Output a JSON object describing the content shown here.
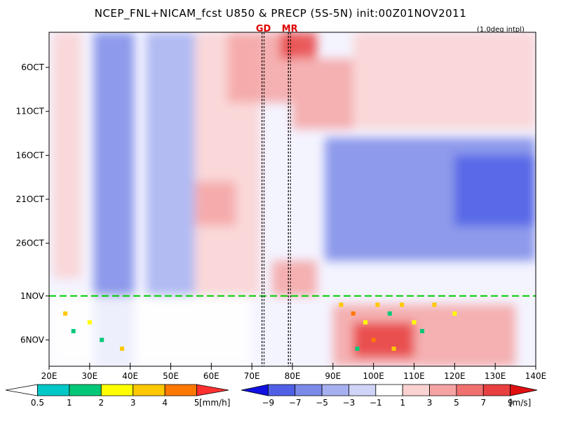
{
  "chart_data": {
    "type": "heatmap",
    "title": "NCEP_FNL+NICAM_fcst U850 & PRECP (5S-5N) init:00Z01NOV2011",
    "subtitle": "(1.0deg intpl)",
    "x_range": [
      20,
      140
    ],
    "x_ticks": [
      "20E",
      "30E",
      "40E",
      "50E",
      "60E",
      "70E",
      "80E",
      "90E",
      "100E",
      "110E",
      "120E",
      "130E",
      "140E"
    ],
    "y_range": [
      "2OCT",
      "9NOV"
    ],
    "y_ticks": [
      "6OCT",
      "11OCT",
      "16OCT",
      "21OCT",
      "26OCT",
      "1NOV",
      "6NOV"
    ],
    "y_tick_days": [
      6,
      11,
      16,
      21,
      26,
      32,
      37
    ],
    "y_first_day": 2,
    "y_last_day": 40,
    "analysis_forecast_boundary": "1NOV",
    "boundary_color": "#00cc00",
    "markers": [
      {
        "label": "GD",
        "lon": 72.5
      },
      {
        "label": "MR",
        "lon": 79
      }
    ],
    "marker_color": "#dd0000",
    "u850_bands": [
      {
        "lon": [
          31,
          41
        ],
        "day": [
          2,
          40
        ],
        "value": -5
      },
      {
        "lon": [
          21,
          28
        ],
        "day": [
          2,
          30
        ],
        "value": 3
      },
      {
        "lon": [
          44,
          56
        ],
        "day": [
          2,
          32
        ],
        "value": -3
      },
      {
        "lon": [
          56,
          72
        ],
        "day": [
          2,
          32
        ],
        "value": 3
      },
      {
        "lon": [
          64,
          80
        ],
        "day": [
          2,
          10
        ],
        "value": 5
      },
      {
        "lon": [
          77,
          86
        ],
        "day": [
          2,
          5
        ],
        "value": 9
      },
      {
        "lon": [
          80,
          95
        ],
        "day": [
          5,
          13
        ],
        "value": 5
      },
      {
        "lon": [
          56,
          66
        ],
        "day": [
          19,
          24
        ],
        "value": 5
      },
      {
        "lon": [
          75,
          86
        ],
        "day": [
          28,
          32
        ],
        "value": 5
      },
      {
        "lon": [
          88,
          140
        ],
        "day": [
          14,
          28
        ],
        "value": -5
      },
      {
        "lon": [
          120,
          140
        ],
        "day": [
          16,
          24
        ],
        "value": -7
      },
      {
        "lon": [
          95,
          140
        ],
        "day": [
          2,
          13
        ],
        "value": 3
      },
      {
        "lon": [
          90,
          135
        ],
        "day": [
          33,
          40
        ],
        "value": 5
      },
      {
        "lon": [
          95,
          110
        ],
        "day": [
          35,
          39
        ],
        "value": 9
      },
      {
        "lon": [
          20,
          70
        ],
        "day": [
          32,
          40
        ],
        "value": 1
      }
    ],
    "precip_points": [
      {
        "lon": 24,
        "day": 34,
        "value": 3
      },
      {
        "lon": 26,
        "day": 36,
        "value": 1
      },
      {
        "lon": 30,
        "day": 35,
        "value": 2
      },
      {
        "lon": 33,
        "day": 37,
        "value": 1
      },
      {
        "lon": 38,
        "day": 38,
        "value": 3
      },
      {
        "lon": 92,
        "day": 33,
        "value": 3
      },
      {
        "lon": 95,
        "day": 34,
        "value": 4
      },
      {
        "lon": 98,
        "day": 35,
        "value": 2
      },
      {
        "lon": 101,
        "day": 33,
        "value": 3
      },
      {
        "lon": 104,
        "day": 34,
        "value": 1
      },
      {
        "lon": 107,
        "day": 33,
        "value": 3
      },
      {
        "lon": 110,
        "day": 35,
        "value": 2
      },
      {
        "lon": 100,
        "day": 37,
        "value": 4
      },
      {
        "lon": 112,
        "day": 36,
        "value": 1
      },
      {
        "lon": 115,
        "day": 33,
        "value": 3
      },
      {
        "lon": 120,
        "day": 34,
        "value": 2
      },
      {
        "lon": 96,
        "day": 38,
        "value": 1
      },
      {
        "lon": 105,
        "day": 38,
        "value": 3
      }
    ],
    "precip_legend": {
      "levels": [
        "0.5",
        "1",
        "2",
        "3",
        "4",
        "5"
      ],
      "colors": [
        "#ffffff",
        "#00c8c8",
        "#00c878",
        "#ffff00",
        "#ffc800",
        "#ff7800",
        "#ff3030"
      ],
      "unit": "[mm/h]"
    },
    "u850_legend": {
      "levels": [
        "−9",
        "−7",
        "−5",
        "−3",
        "−1",
        "1",
        "3",
        "5",
        "7",
        "9"
      ],
      "colors": [
        "#1010e0",
        "#5060e6",
        "#7b8ae8",
        "#a6b0f0",
        "#d0d4f8",
        "#ffffff",
        "#fad2d2",
        "#f5a3a3",
        "#f07070",
        "#e84040",
        "#e01010"
      ],
      "unit": "[m/s]"
    }
  }
}
